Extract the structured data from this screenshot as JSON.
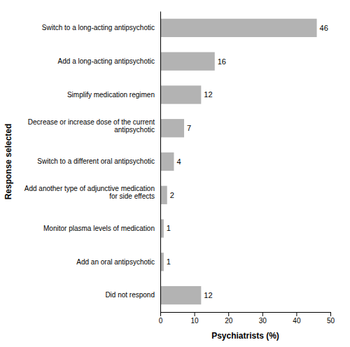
{
  "chart_data": {
    "type": "bar",
    "orientation": "horizontal",
    "categories": [
      "Switch to a long-acting antipsychotic",
      "Add a long-acting antipsychotic",
      "Simplify medication regimen",
      "Decrease or increase dose of  the current\nantipsychotic",
      "Switch to a different oral antipsychotic",
      "Add another type of adjunctive medication\nfor side effects",
      "Monitor plasma levels of medication",
      "Add an oral antipsychotic",
      "Did not respond"
    ],
    "values": [
      46,
      16,
      12,
      7,
      4,
      2,
      1,
      1,
      12
    ],
    "color": "#b3b3b3",
    "xlabel": "Psychiatrists (%)",
    "ylabel": "Response selected",
    "xlim": [
      0,
      50
    ],
    "xticks": [
      0,
      10,
      20,
      30,
      40,
      50
    ],
    "data_labels": true,
    "grid": false
  }
}
